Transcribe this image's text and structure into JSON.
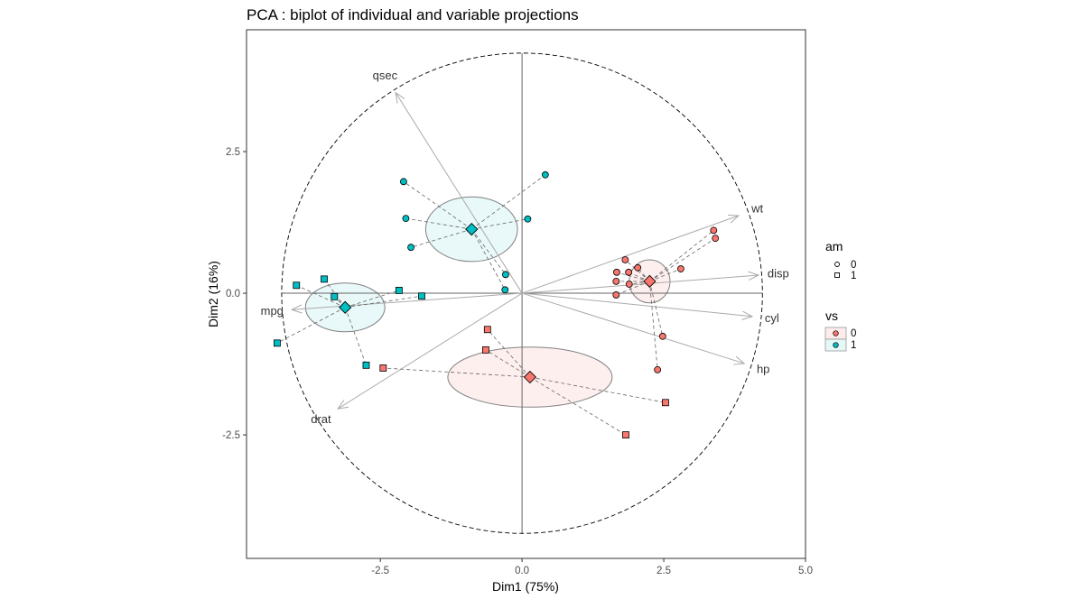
{
  "chart_data": {
    "type": "scatter",
    "subtype": "pca-biplot",
    "title": "PCA : biplot of individual and variable projections",
    "xlabel": "Dim1 (75%)",
    "ylabel": "Dim2 (16%)",
    "xlim": [
      -4.86,
      5.0
    ],
    "ylim": [
      -4.68,
      4.65
    ],
    "x_ticks": [
      -2.5,
      0.0,
      2.5,
      5.0
    ],
    "x_tick_labels": [
      "-2.5",
      "0.0",
      "2.5",
      "5.0"
    ],
    "y_ticks": [
      -2.5,
      0.0,
      2.5
    ],
    "y_tick_labels": [
      "-2.5",
      "0.0",
      "2.5"
    ],
    "grid": false,
    "correlation_circle_radius": 4.24,
    "colors": {
      "vs0": "#F8766D",
      "vs1": "#00BFC4",
      "arrow": "#aaaaaa",
      "ellipse_stroke": "#808080",
      "axis_line": "#666666"
    },
    "variables": [
      {
        "name": "qsec",
        "x": -2.23,
        "y": 3.54
      },
      {
        "name": "wt",
        "x": 3.82,
        "y": 1.37
      },
      {
        "name": "disp",
        "x": 4.17,
        "y": 0.32
      },
      {
        "name": "cyl",
        "x": 4.06,
        "y": -0.41
      },
      {
        "name": "hp",
        "x": 3.92,
        "y": -1.24
      },
      {
        "name": "drat",
        "x": -3.25,
        "y": -2.04
      },
      {
        "name": "mpg",
        "x": -4.06,
        "y": -0.29
      }
    ],
    "groups": [
      {
        "name": "vs=1, am=1",
        "vs": "1",
        "am": "1",
        "centroid": [
          -3.12,
          -0.25
        ],
        "ellipse": {
          "rx": 0.7,
          "ry": 0.43
        },
        "points": [
          [
            -3.98,
            0.14
          ],
          [
            -3.49,
            0.25
          ],
          [
            -3.31,
            -0.06
          ],
          [
            -2.17,
            0.05
          ],
          [
            -1.77,
            -0.05
          ],
          [
            -4.32,
            -0.88
          ],
          [
            -2.75,
            -1.27
          ]
        ]
      },
      {
        "name": "vs=1, am=0",
        "vs": "1",
        "am": "0",
        "centroid": [
          -0.89,
          1.13
        ],
        "ellipse": {
          "rx": 0.81,
          "ry": 0.57
        },
        "points": [
          [
            -2.09,
            1.97
          ],
          [
            0.41,
            2.09
          ],
          [
            -2.05,
            1.32
          ],
          [
            0.1,
            1.31
          ],
          [
            -1.96,
            0.81
          ],
          [
            -0.29,
            0.33
          ],
          [
            -0.3,
            0.06
          ]
        ]
      },
      {
        "name": "vs=0, am=0",
        "vs": "0",
        "am": "0",
        "centroid": [
          2.25,
          0.21
        ],
        "ellipse": {
          "rx": 0.36,
          "ry": 0.38
        },
        "points": [
          [
            1.82,
            0.59
          ],
          [
            1.67,
            0.37
          ],
          [
            1.88,
            0.37
          ],
          [
            2.04,
            0.45
          ],
          [
            1.66,
            0.21
          ],
          [
            1.89,
            0.16
          ],
          [
            1.66,
            -0.03
          ],
          [
            2.8,
            0.43
          ],
          [
            3.38,
            1.11
          ],
          [
            3.41,
            0.97
          ],
          [
            2.48,
            -0.76
          ],
          [
            2.39,
            -1.35
          ]
        ]
      },
      {
        "name": "vs=0, am=1",
        "vs": "0",
        "am": "1",
        "centroid": [
          0.14,
          -1.48
        ],
        "ellipse": {
          "rx": 1.45,
          "ry": 0.53
        },
        "points": [
          [
            -0.61,
            -0.64
          ],
          [
            -0.64,
            -1.0
          ],
          [
            -2.45,
            -1.32
          ],
          [
            2.53,
            -1.93
          ],
          [
            1.83,
            -2.5
          ]
        ]
      }
    ],
    "legends": [
      {
        "title": "am",
        "placement": "right",
        "entries": [
          {
            "label": "0",
            "shape": "circle"
          },
          {
            "label": "1",
            "shape": "square"
          }
        ]
      },
      {
        "title": "vs",
        "placement": "right",
        "entries": [
          {
            "label": "0",
            "color": "#F8766D"
          },
          {
            "label": "1",
            "color": "#00BFC4"
          }
        ]
      }
    ]
  }
}
